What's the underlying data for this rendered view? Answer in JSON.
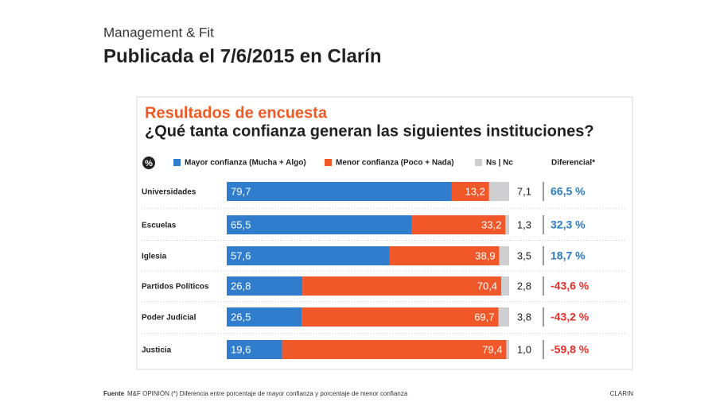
{
  "header": {
    "brand": "Management & Fit",
    "title": "Publicada el 7/6/2015 en Clarín"
  },
  "chart_data": {
    "type": "stacked-bar",
    "orientation": "horizontal",
    "title": "Resultados de encuesta",
    "subtitle": "¿Qué tanta confianza generan las siguientes instituciones?",
    "unit": "%",
    "categories": [
      "Universidades",
      "Escuelas",
      "Iglesia",
      "Partidos Políticos",
      "Poder Judicial",
      "Justicia"
    ],
    "xlim": [
      0,
      100
    ],
    "series": [
      {
        "name": "Mayor confianza (Mucha + Algo)",
        "color": "#2f7dcc",
        "values": [
          79.7,
          65.5,
          57.6,
          26.8,
          26.5,
          19.6
        ],
        "value_labels": [
          "79,7",
          "65,5",
          "57,6",
          "26,8",
          "26,5",
          "19,6"
        ]
      },
      {
        "name": "Menor confianza (Poco + Nada)",
        "color": "#f0582a",
        "values": [
          13.2,
          33.2,
          38.9,
          70.4,
          69.7,
          79.4
        ],
        "value_labels": [
          "13,2",
          "33,2",
          "38,9",
          "70,4",
          "69,7",
          "79,4"
        ]
      },
      {
        "name": "Ns | Nc",
        "color": "#cfcfd2",
        "values": [
          7.1,
          1.3,
          3.5,
          2.8,
          3.8,
          1.0
        ],
        "value_labels": [
          "7,1",
          "1,3",
          "3,5",
          "2,8",
          "3,8",
          "1,0"
        ]
      }
    ],
    "differential": {
      "name": "Diferencial*",
      "values": [
        66.5,
        32.3,
        18.7,
        -43.6,
        -43.2,
        -59.8
      ],
      "value_labels": [
        "66,5 %",
        "32,3 %",
        "18,7 %",
        "-43,6 %",
        "-43,2 %",
        "-59,8 %"
      ],
      "color_positive": "#2a7bc4",
      "color_negative": "#e5302a"
    }
  },
  "footer": {
    "source_label": "Fuente",
    "source": "M&F OPINIÓN (*) Diferencia entre porcentaje de mayor confianza y porcentaje de menor confianza",
    "credit": "CLARIN"
  }
}
